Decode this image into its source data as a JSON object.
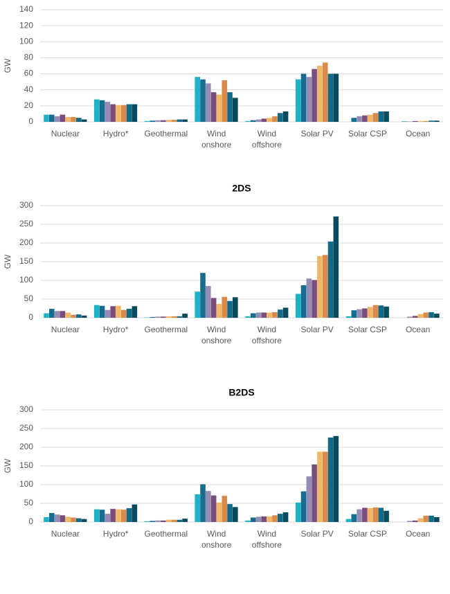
{
  "chart_data": [
    {
      "type": "bar",
      "y_label": "GW",
      "categories": [
        "Nuclear",
        "Hydro*",
        "Geothermal",
        "Wind onshore",
        "Wind offshore",
        "Solar PV",
        "Solar CSP",
        "Ocean"
      ],
      "ylim": [
        0,
        140
      ],
      "yticks": [
        0,
        20,
        40,
        60,
        80,
        100,
        120,
        140
      ],
      "grid": true,
      "series": [
        {
          "color": "#1cb3c7",
          "values": [
            9,
            28,
            1,
            56,
            1,
            53,
            0,
            0
          ]
        },
        {
          "color": "#176d8f",
          "values": [
            9,
            27,
            1.5,
            53,
            2,
            60,
            5,
            0.5
          ]
        },
        {
          "color": "#958cb6",
          "values": [
            7,
            25,
            2,
            48,
            3,
            56,
            7,
            0.5
          ]
        },
        {
          "color": "#7b4d7c",
          "values": [
            9,
            22,
            2,
            37,
            4,
            66,
            8,
            1
          ]
        },
        {
          "color": "#f0b866",
          "values": [
            6,
            21,
            2.5,
            34,
            5,
            70,
            9,
            1
          ]
        },
        {
          "color": "#d98b4b",
          "values": [
            6,
            21,
            2.5,
            52,
            7,
            74,
            11,
            1
          ]
        },
        {
          "color": "#136a86",
          "values": [
            5,
            22,
            3,
            37,
            11,
            60,
            13,
            1.5
          ]
        },
        {
          "color": "#0a4a5e",
          "values": [
            3,
            22,
            3,
            30,
            13,
            60,
            13,
            1.5
          ]
        }
      ]
    },
    {
      "type": "bar",
      "title": "2DS",
      "y_label": "GW",
      "categories": [
        "Nuclear",
        "Hydro*",
        "Geothermal",
        "Wind onshore",
        "Wind offshore",
        "Solar PV",
        "Solar CSP",
        "Ocean"
      ],
      "ylim": [
        0,
        300
      ],
      "yticks": [
        0,
        50,
        100,
        150,
        200,
        250,
        300
      ],
      "grid": true,
      "series": [
        {
          "color": "#1cb3c7",
          "values": [
            12,
            34,
            1,
            70,
            4,
            64,
            4,
            0
          ]
        },
        {
          "color": "#176d8f",
          "values": [
            24,
            32,
            2,
            120,
            12,
            87,
            20,
            0
          ]
        },
        {
          "color": "#958cb6",
          "values": [
            18,
            21,
            3,
            85,
            14,
            105,
            23,
            3
          ]
        },
        {
          "color": "#7b4d7c",
          "values": [
            18,
            31,
            3,
            53,
            14,
            101,
            25,
            5
          ]
        },
        {
          "color": "#f0b866",
          "values": [
            14,
            32,
            4,
            37,
            14,
            165,
            29,
            10
          ]
        },
        {
          "color": "#d98b4b",
          "values": [
            8,
            21,
            4,
            56,
            15,
            168,
            34,
            14
          ]
        },
        {
          "color": "#136a86",
          "values": [
            9,
            24,
            4,
            45,
            22,
            204,
            33,
            15
          ]
        },
        {
          "color": "#0a4a5e",
          "values": [
            6,
            31,
            11,
            55,
            27,
            271,
            30,
            11
          ]
        }
      ]
    },
    {
      "type": "bar",
      "title": "B2DS",
      "y_label": "GW",
      "categories": [
        "Nuclear",
        "Hydro*",
        "Geothermal",
        "Wind onshore",
        "Wind offshore",
        "Solar PV",
        "Solar CSP",
        "Ocean"
      ],
      "ylim": [
        0,
        300
      ],
      "yticks": [
        0,
        50,
        100,
        150,
        200,
        250,
        300
      ],
      "grid": true,
      "series": [
        {
          "color": "#1cb3c7",
          "values": [
            13,
            34,
            2,
            74,
            4,
            52,
            8,
            0
          ]
        },
        {
          "color": "#176d8f",
          "values": [
            24,
            33,
            3,
            101,
            12,
            82,
            21,
            0
          ]
        },
        {
          "color": "#958cb6",
          "values": [
            20,
            22,
            4,
            83,
            14,
            122,
            34,
            3
          ]
        },
        {
          "color": "#7b4d7c",
          "values": [
            18,
            35,
            4,
            71,
            15,
            154,
            38,
            4
          ]
        },
        {
          "color": "#f0b866",
          "values": [
            14,
            34,
            6,
            52,
            15,
            188,
            37,
            10
          ]
        },
        {
          "color": "#d98b4b",
          "values": [
            12,
            33,
            6,
            70,
            18,
            188,
            39,
            17
          ]
        },
        {
          "color": "#136a86",
          "values": [
            10,
            37,
            6,
            48,
            22,
            226,
            38,
            17
          ]
        },
        {
          "color": "#0a4a5e",
          "values": [
            8,
            47,
            9,
            40,
            26,
            230,
            30,
            13
          ]
        }
      ]
    }
  ]
}
